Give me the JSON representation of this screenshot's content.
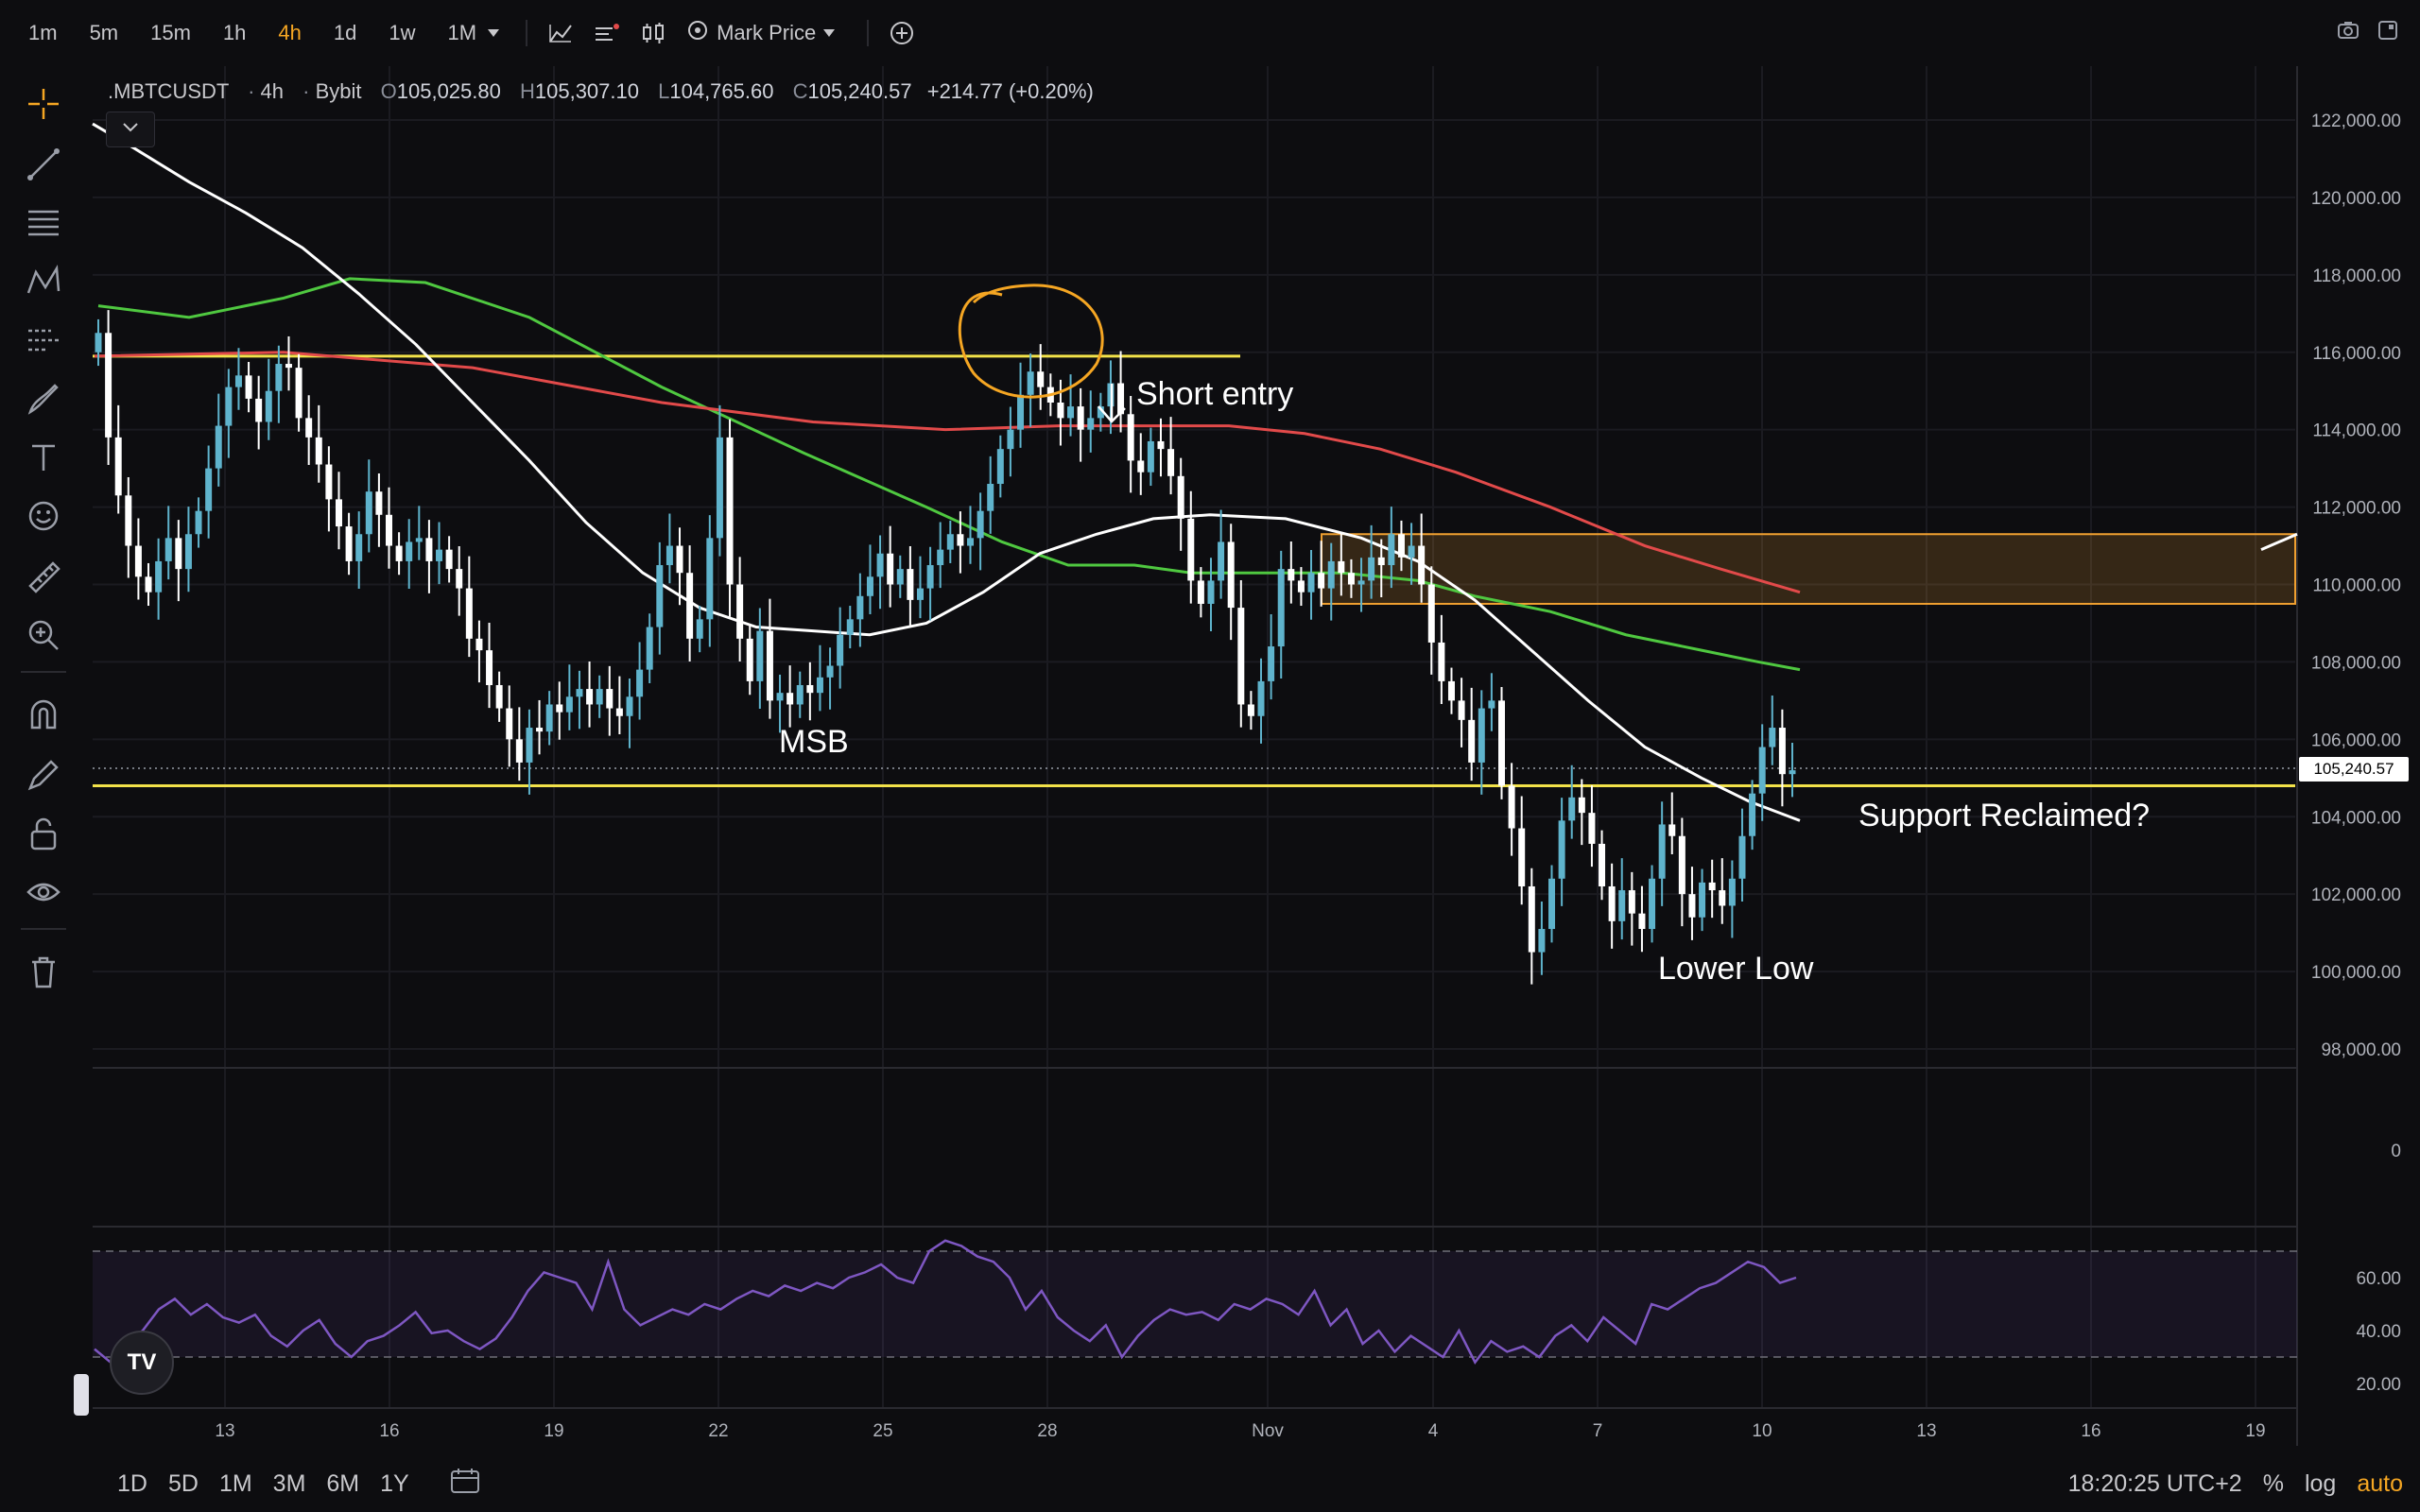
{
  "toolbar": {
    "timeframes": [
      "1m",
      "5m",
      "15m",
      "1h",
      "4h",
      "1d",
      "1w",
      "1M"
    ],
    "active_timeframe": "4h",
    "price_type": "Mark Price"
  },
  "legend": {
    "symbol": ".MBTCUSDT",
    "interval": "4h",
    "exchange": "Bybit",
    "open_label": "O",
    "open": "105,025.80",
    "high_label": "H",
    "high": "105,307.10",
    "low_label": "L",
    "low": "104,765.60",
    "close_label": "C",
    "close": "105,240.57",
    "change": "+214.77 (+0.20%)"
  },
  "annotations": {
    "short_entry": "Short entry",
    "msb": "MSB",
    "support": "Support Reclaimed?",
    "lower_low": "Lower Low"
  },
  "current_price": "105,240.57",
  "price_axis": [
    "122,000.00",
    "120,000.00",
    "118,000.00",
    "116,000.00",
    "114,000.00",
    "112,000.00",
    "110,000.00",
    "108,000.00",
    "106,000.00",
    "104,000.00",
    "102,000.00",
    "100,000.00",
    "98,000.00"
  ],
  "volume_axis": [
    "0"
  ],
  "rsi_axis": [
    "60.00",
    "40.00",
    "20.00"
  ],
  "time_axis": [
    "13",
    "16",
    "19",
    "22",
    "25",
    "28",
    "Nov",
    "4",
    "7",
    "10",
    "13",
    "16",
    "19"
  ],
  "bottom": {
    "ranges": [
      "1D",
      "5D",
      "1M",
      "3M",
      "6M",
      "1Y"
    ],
    "clock": "18:20:25 UTC+2",
    "percent": "%",
    "log": "log",
    "auto": "auto"
  },
  "colors": {
    "up": "#5fb3cc",
    "down": "#ffffff",
    "yellow_line": "#f2e24a",
    "ma_red": "#e24a4a",
    "ma_green": "#4fc840",
    "ma_white": "#ffffff",
    "rsi": "#7e57c2",
    "zone": "#f0a030"
  },
  "chart_data": {
    "type": "candlestick",
    "symbol": ".MBTCUSDT",
    "interval": "4h",
    "ylim": [
      97000,
      123000
    ],
    "resistance_level": 115900,
    "support_level": 104800,
    "supply_zone": [
      109500,
      111300
    ],
    "x_ticks": [
      "13",
      "16",
      "19",
      "22",
      "25",
      "28",
      "Nov",
      "4",
      "7",
      "10",
      "13",
      "16",
      "19"
    ],
    "closes": [
      116500,
      113800,
      112300,
      111000,
      110200,
      109800,
      110600,
      111200,
      110400,
      111300,
      111900,
      113000,
      114100,
      115100,
      115400,
      114800,
      114200,
      115000,
      115700,
      115600,
      114300,
      113800,
      113100,
      112200,
      111500,
      110600,
      111300,
      112400,
      111800,
      111000,
      110600,
      111100,
      111200,
      110600,
      110900,
      110400,
      109900,
      108600,
      108300,
      107400,
      106800,
      106000,
      105400,
      106300,
      106200,
      106900,
      106700,
      107100,
      107300,
      106900,
      107300,
      106800,
      106600,
      107100,
      107800,
      108900,
      110500,
      111000,
      110300,
      108600,
      109100,
      111200,
      113800,
      110000,
      108600,
      107500,
      108800,
      107000,
      107200,
      106900,
      107400,
      107200,
      107600,
      107900,
      108700,
      109100,
      109700,
      110200,
      110800,
      110000,
      110400,
      109600,
      109900,
      110500,
      110900,
      111300,
      111000,
      111200,
      111900,
      112600,
      113500,
      114000,
      114900,
      115500,
      115100,
      114700,
      114300,
      114600,
      114000,
      114300,
      114600,
      115200,
      114400,
      113200,
      112900,
      113700,
      113500,
      112800,
      111700,
      110100,
      109500,
      110100,
      111100,
      109400,
      106900,
      106600,
      107500,
      108400,
      110400,
      110100,
      109800,
      110300,
      109900,
      110600,
      110300,
      110000,
      110100,
      110700,
      110500,
      111300,
      110700,
      111000,
      110000,
      108500,
      107500,
      107000,
      106500,
      105400,
      106800,
      107000,
      104800,
      103700,
      102200,
      100500,
      101100,
      102400,
      103900,
      104500,
      104100,
      103300,
      102200,
      101300,
      102100,
      101500,
      101100,
      102400,
      103800,
      103500,
      102000,
      101400,
      102300,
      102100,
      101700,
      102400,
      103500,
      104600,
      105800,
      106300,
      105100,
      105200
    ]
  }
}
